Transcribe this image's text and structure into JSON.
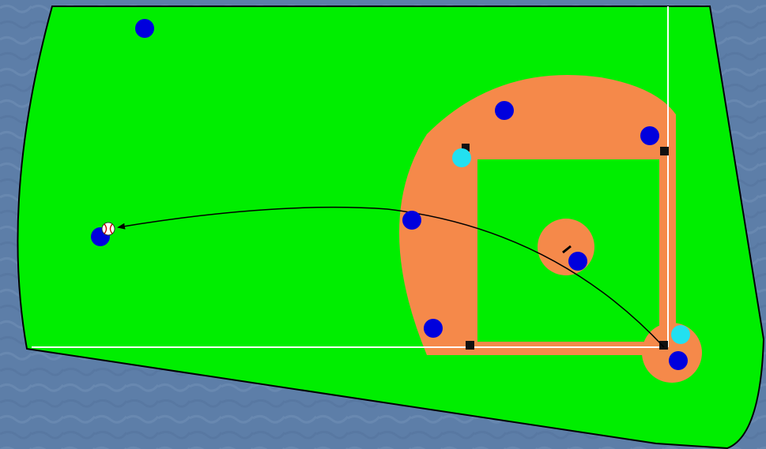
{
  "colors": {
    "background": "#5d7ea8",
    "field_grass": "#00ee00",
    "infield_dirt": "#f5894a",
    "foul_line": "#ffffff",
    "outline": "#000000",
    "fielder": "#0000dd",
    "runner": "#22e0f0",
    "base": "#111111",
    "trajectory": "#000000",
    "ball": "#ffffff",
    "ball_stitch": "#cc0000"
  },
  "players": {
    "fielders": [
      {
        "role": "left-fielder"
      },
      {
        "role": "second-baseman"
      },
      {
        "role": "first-baseman"
      },
      {
        "role": "shortstop"
      },
      {
        "role": "pitcher"
      },
      {
        "role": "third-baseman"
      },
      {
        "role": "catcher"
      },
      {
        "role": "outfielder-with-ball"
      }
    ],
    "runners": [
      {
        "role": "runner-near-second"
      },
      {
        "role": "batter-runner-at-home"
      }
    ]
  },
  "play": {
    "ball": "baseball-icon",
    "path_from": "home-plate",
    "path_to": "outfield"
  }
}
